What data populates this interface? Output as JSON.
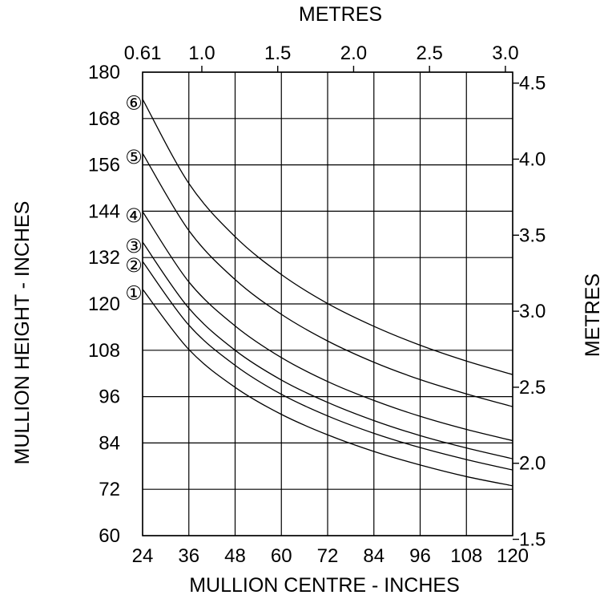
{
  "chart_data": {
    "type": "line",
    "title": "",
    "xlabel": "MULLION CENTRE - INCHES",
    "ylabel": "MULLION HEIGHT - INCHES",
    "top_axis_label": "METRES",
    "right_axis_label": "METRES",
    "xlim": [
      24,
      120
    ],
    "ylim": [
      60,
      180
    ],
    "x_ticks": [
      "24",
      "36",
      "48",
      "60",
      "72",
      "84",
      "96",
      "108",
      "120"
    ],
    "y_ticks": [
      "60",
      "72",
      "84",
      "96",
      "108",
      "120",
      "132",
      "144",
      "156",
      "168",
      "180"
    ],
    "top_ticks": [
      {
        "label": "0.61",
        "value": 0.61
      },
      {
        "label": "1.0",
        "value": 1.0
      },
      {
        "label": "1.5",
        "value": 1.5
      },
      {
        "label": "2.0",
        "value": 2.0
      },
      {
        "label": "2.5",
        "value": 2.5
      },
      {
        "label": "3.0",
        "value": 3.0
      }
    ],
    "right_ticks": [
      {
        "label": "1.5",
        "value": 1.5
      },
      {
        "label": "2.0",
        "value": 2.0
      },
      {
        "label": "2.5",
        "value": 2.5
      },
      {
        "label": "3.0",
        "value": 3.0
      },
      {
        "label": "3.5",
        "value": 3.5
      },
      {
        "label": "4.0",
        "value": 4.0
      },
      {
        "label": "4.5",
        "value": 4.5
      }
    ],
    "grid": true,
    "series": [
      {
        "marker": "①",
        "x": [
          24,
          36,
          48,
          60,
          72,
          84,
          96,
          108,
          120
        ],
        "y": [
          123.8,
          108.2,
          98.4,
          91.4,
          86.1,
          81.8,
          78.3,
          75.3,
          72.9
        ]
      },
      {
        "marker": "②",
        "x": [
          24,
          36,
          48,
          60,
          72,
          84,
          96,
          108,
          120
        ],
        "y": [
          131.0,
          114.5,
          104.1,
          96.6,
          91.0,
          86.5,
          82.8,
          79.7,
          77.0
        ]
      },
      {
        "marker": "③",
        "x": [
          24,
          36,
          48,
          60,
          72,
          84,
          96,
          108,
          120
        ],
        "y": [
          136.0,
          118.9,
          108.0,
          100.3,
          94.5,
          89.8,
          85.9,
          82.7,
          79.9
        ]
      },
      {
        "marker": "④",
        "x": [
          24,
          36,
          48,
          60,
          72,
          84,
          96,
          108,
          120
        ],
        "y": [
          143.9,
          125.7,
          114.3,
          106.1,
          99.9,
          95.0,
          90.9,
          87.5,
          84.6
        ]
      },
      {
        "marker": "⑤",
        "x": [
          24,
          36,
          48,
          60,
          72,
          84,
          96,
          108,
          120
        ],
        "y": [
          159.0,
          139.0,
          126.3,
          117.3,
          110.4,
          104.9,
          100.4,
          96.7,
          93.4
        ]
      },
      {
        "marker": "⑥",
        "x": [
          24,
          36,
          48,
          60,
          72,
          84,
          96,
          108,
          120
        ],
        "y": [
          173.0,
          151.2,
          137.4,
          127.6,
          120.1,
          114.2,
          109.3,
          105.2,
          101.7
        ]
      }
    ]
  }
}
